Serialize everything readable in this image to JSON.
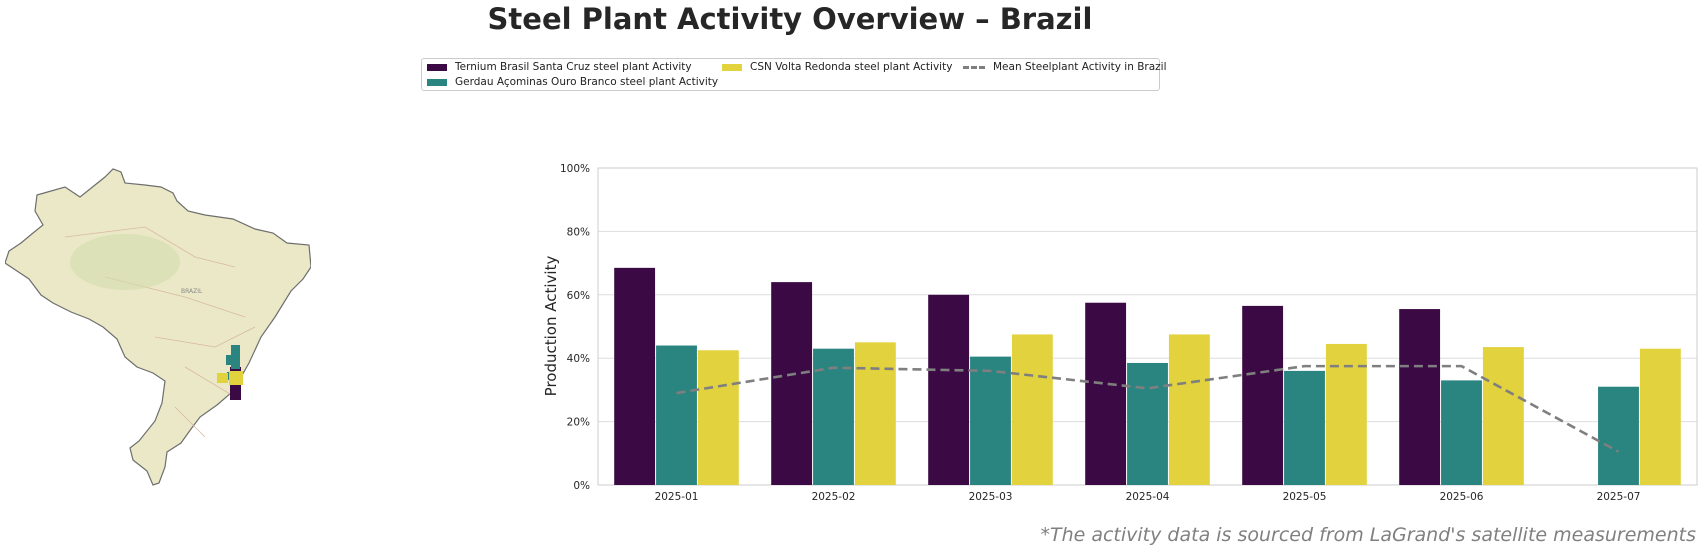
{
  "title": "Steel Plant Activity Overview – Brazil",
  "source_note": "*The activity data is sourced from LaGrand's satellite measurements",
  "legend": {
    "items": [
      {
        "label": "Ternium Brasil Santa Cruz steel plant Activity",
        "color": "#3b0a45"
      },
      {
        "label": "Gerdau Açominas Ouro Branco steel plant Activity",
        "color": "#2a8480"
      },
      {
        "label": "CSN Volta Redonda steel plant Activity",
        "color": "#e2d23e"
      },
      {
        "label": "Mean Steelplant Activity in Brazil",
        "color": "#7f7f7f"
      }
    ]
  },
  "map": {
    "country_label": "BRAZIL",
    "land_color": "#eeeacc",
    "marker_colors": [
      "#3b0a45",
      "#2a8480",
      "#e2d23e"
    ]
  },
  "chart_data": {
    "type": "bar",
    "ylabel": "Production Activity",
    "xlabel": "",
    "ylim": [
      0,
      100
    ],
    "yticks": [
      "0%",
      "20%",
      "40%",
      "60%",
      "80%",
      "100%"
    ],
    "grid": true,
    "legend_position": "top-center",
    "categories": [
      "2025-01",
      "2025-02",
      "2025-03",
      "2025-04",
      "2025-05",
      "2025-06",
      "2025-07"
    ],
    "series": [
      {
        "name": "Ternium Brasil Santa Cruz steel plant Activity",
        "color": "#3b0a45",
        "values": [
          68.5,
          64,
          60,
          57.5,
          56.5,
          55.5,
          null
        ]
      },
      {
        "name": "Gerdau Açominas Ouro Branco steel plant Activity",
        "color": "#2a8480",
        "values": [
          44,
          43,
          40.5,
          38.5,
          36,
          33,
          31
        ]
      },
      {
        "name": "CSN Volta Redonda steel plant Activity",
        "color": "#e2d23e",
        "values": [
          42.5,
          45,
          47.5,
          47.5,
          44.5,
          43.5,
          43
        ]
      }
    ],
    "line": {
      "name": "Mean Steelplant Activity in Brazil",
      "color": "#7f7f7f",
      "values": [
        29,
        37,
        36,
        30.5,
        37.5,
        37.5,
        10.5
      ]
    }
  }
}
